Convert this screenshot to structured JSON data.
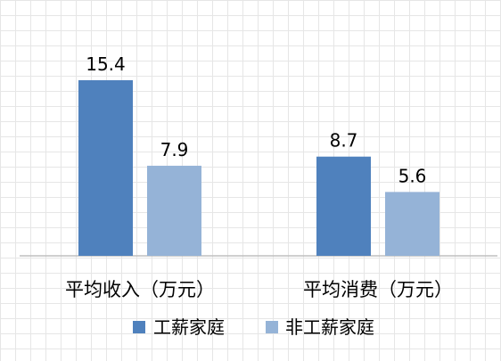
{
  "chart_data": {
    "type": "bar",
    "categories": [
      "平均收入（万元）",
      "平均消费（万元）"
    ],
    "series": [
      {
        "name": "工薪家庭",
        "values": [
          15.4,
          8.7
        ],
        "color": "#4f81bd"
      },
      {
        "name": "非工薪家庭",
        "values": [
          7.9,
          5.6
        ],
        "color": "#95b3d7"
      }
    ],
    "title": "",
    "xlabel": "",
    "ylabel": "",
    "ylim": [
      0,
      17
    ],
    "grid": true,
    "legend_position": "bottom",
    "data_labels": true
  }
}
